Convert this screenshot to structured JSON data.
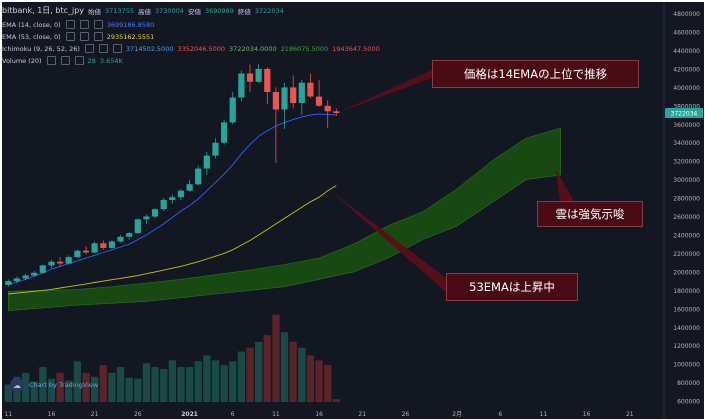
{
  "header": {
    "symbol": "bitbank, 1日, btc_jpy",
    "ohlc": [
      {
        "label": "始値",
        "value": "3713755"
      },
      {
        "label": "高値",
        "value": "3730004"
      },
      {
        "label": "安値",
        "value": "3690989"
      },
      {
        "label": "終値",
        "value": "3722034"
      }
    ],
    "legend": [
      {
        "name": "EMA (14, close, 0)",
        "value": "3699186.8580",
        "color": "#2962ff"
      },
      {
        "name": "EMA (53, close, 0)",
        "value": "2935162.5551",
        "color": "#ffd600"
      },
      {
        "name": "Ichimoku (9, 26, 52, 26)",
        "values": [
          "3714502.5000",
          "3352046.5000",
          "3722034.0000",
          "2186075.5000",
          "1943647.5000"
        ],
        "colors": [
          "#2196f3",
          "#e53935",
          "#43a047",
          "#2e7d32",
          "#c62828"
        ]
      },
      {
        "name": "Volume (20)",
        "values": [
          "28",
          "3.654K"
        ],
        "colors": [
          "#26a69a",
          "#26a69a"
        ]
      }
    ]
  },
  "annotations": [
    {
      "text": "価格は14EMAの上位で推移"
    },
    {
      "text": "雲は強気示唆"
    },
    {
      "text": "53EMAは上昇中"
    }
  ],
  "watermark": "Chart by TradingView",
  "last_price_label": "3722034",
  "colors": {
    "background": "#131722",
    "up": "#26a69a",
    "down": "#ef5350",
    "ema14": "#2962ff",
    "ema53": "#c9c219",
    "cloud": "#1a4c12"
  },
  "chart_data": {
    "type": "candlestick",
    "title": "bitbank, 1日, btc_jpy",
    "y_ticks": [
      600000,
      800000,
      1000000,
      1200000,
      1400000,
      1600000,
      1800000,
      2000000,
      2200000,
      2400000,
      2600000,
      2800000,
      3000000,
      3200000,
      3400000,
      3600000,
      3800000,
      4000000,
      4200000,
      4400000,
      4600000,
      4800000
    ],
    "ylim": [
      590000,
      4860000
    ],
    "x_ticks": [
      {
        "label": "11",
        "i": 0
      },
      {
        "label": "16",
        "i": 5
      },
      {
        "label": "21",
        "i": 10
      },
      {
        "label": "26",
        "i": 15
      },
      {
        "label": "2021",
        "i": 21
      },
      {
        "label": "6",
        "i": 26
      },
      {
        "label": "11",
        "i": 31
      },
      {
        "label": "16",
        "i": 36
      },
      {
        "label": "21",
        "i": 41
      },
      {
        "label": "26",
        "i": 46
      },
      {
        "label": "2月",
        "i": 52
      },
      {
        "label": "6",
        "i": 57
      },
      {
        "label": "11",
        "i": 62
      },
      {
        "label": "16",
        "i": 67
      },
      {
        "label": "21",
        "i": 72
      }
    ],
    "candles": [
      [
        1860000,
        1920000,
        1840000,
        1900000
      ],
      [
        1900000,
        1950000,
        1880000,
        1930000
      ],
      [
        1930000,
        1980000,
        1910000,
        1960000
      ],
      [
        1960000,
        2010000,
        1950000,
        1990000
      ],
      [
        1990000,
        2080000,
        1980000,
        2070000
      ],
      [
        2070000,
        2130000,
        2040000,
        2110000
      ],
      [
        2110000,
        2160000,
        2060000,
        2090000
      ],
      [
        2090000,
        2180000,
        2080000,
        2160000
      ],
      [
        2160000,
        2240000,
        2150000,
        2230000
      ],
      [
        2230000,
        2280000,
        2190000,
        2210000
      ],
      [
        2210000,
        2330000,
        2200000,
        2310000
      ],
      [
        2310000,
        2340000,
        2240000,
        2260000
      ],
      [
        2260000,
        2340000,
        2250000,
        2330000
      ],
      [
        2330000,
        2400000,
        2320000,
        2380000
      ],
      [
        2380000,
        2430000,
        2350000,
        2420000
      ],
      [
        2420000,
        2580000,
        2410000,
        2570000
      ],
      [
        2570000,
        2620000,
        2520000,
        2600000
      ],
      [
        2600000,
        2690000,
        2580000,
        2680000
      ],
      [
        2680000,
        2800000,
        2660000,
        2780000
      ],
      [
        2780000,
        2840000,
        2740000,
        2810000
      ],
      [
        2810000,
        2900000,
        2780000,
        2880000
      ],
      [
        2880000,
        3000000,
        2870000,
        2950000
      ],
      [
        2950000,
        3150000,
        2940000,
        3120000
      ],
      [
        3120000,
        3300000,
        3050000,
        3260000
      ],
      [
        3260000,
        3450000,
        3230000,
        3400000
      ],
      [
        3400000,
        3650000,
        3380000,
        3620000
      ],
      [
        3620000,
        3950000,
        3600000,
        3890000
      ],
      [
        3890000,
        4180000,
        3850000,
        4150000
      ],
      [
        4150000,
        4250000,
        3950000,
        4060000
      ],
      [
        4060000,
        4250000,
        4050000,
        4200000
      ],
      [
        4200000,
        4220000,
        3820000,
        3950000
      ],
      [
        3950000,
        4000000,
        3180000,
        3760000
      ],
      [
        3760000,
        4050000,
        3550000,
        4000000
      ],
      [
        4000000,
        4130000,
        3780000,
        3830000
      ],
      [
        3830000,
        4080000,
        3700000,
        4050000
      ],
      [
        4050000,
        4150000,
        3880000,
        3900000
      ],
      [
        3900000,
        4080000,
        3790000,
        3800000
      ],
      [
        3800000,
        3860000,
        3560000,
        3740000
      ],
      [
        3740000,
        3770000,
        3690000,
        3722034
      ]
    ],
    "ema14": [
      1860000,
      1890000,
      1920000,
      1950000,
      1990000,
      2030000,
      2060000,
      2090000,
      2120000,
      2150000,
      2180000,
      2210000,
      2240000,
      2270000,
      2300000,
      2350000,
      2400000,
      2460000,
      2520000,
      2590000,
      2660000,
      2720000,
      2790000,
      2880000,
      2970000,
      3060000,
      3160000,
      3280000,
      3380000,
      3470000,
      3530000,
      3580000,
      3620000,
      3650000,
      3680000,
      3700000,
      3710000,
      3705000,
      3699187
    ],
    "ema53": [
      1760000,
      1770000,
      1780000,
      1790000,
      1800000,
      1810000,
      1825000,
      1840000,
      1855000,
      1870000,
      1885000,
      1900000,
      1915000,
      1930000,
      1945000,
      1960000,
      1980000,
      2000000,
      2020000,
      2040000,
      2060000,
      2085000,
      2110000,
      2140000,
      2170000,
      2200000,
      2240000,
      2290000,
      2340000,
      2400000,
      2460000,
      2520000,
      2580000,
      2640000,
      2700000,
      2760000,
      2810000,
      2880000,
      2935163
    ],
    "cloud": {
      "x": [
        0,
        4,
        8,
        12,
        16,
        20,
        24,
        28,
        32,
        36,
        40,
        44,
        48,
        52,
        56,
        60,
        64
      ],
      "upper": [
        1790000,
        1800000,
        1810000,
        1840000,
        1880000,
        1920000,
        1970000,
        2020000,
        2080000,
        2150000,
        2300000,
        2500000,
        2650000,
        2900000,
        3200000,
        3450000,
        3560000
      ],
      "lower": [
        1580000,
        1610000,
        1640000,
        1660000,
        1680000,
        1720000,
        1760000,
        1800000,
        1840000,
        1920000,
        2000000,
        2150000,
        2350000,
        2500000,
        2750000,
        3000000,
        3050000
      ]
    },
    "volume": [
      180,
      260,
      300,
      210,
      360,
      240,
      300,
      220,
      420,
      300,
      260,
      380,
      300,
      360,
      250,
      240,
      400,
      360,
      340,
      430,
      360,
      360,
      420,
      480,
      430,
      380,
      420,
      520,
      560,
      620,
      690,
      900,
      720,
      620,
      560,
      480,
      430,
      380,
      30
    ],
    "volume_max": 1000
  }
}
